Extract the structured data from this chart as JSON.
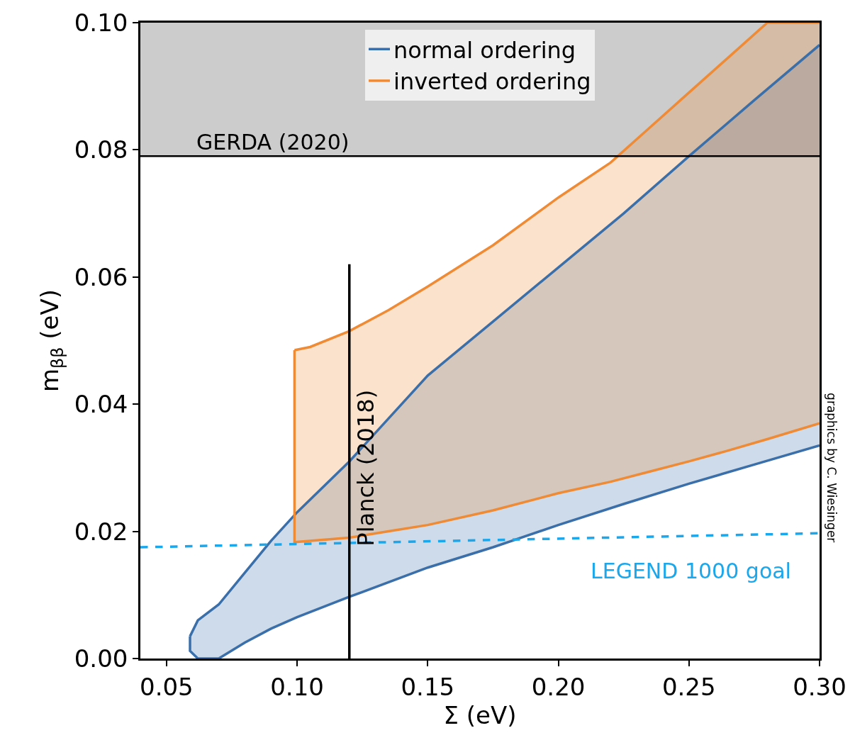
{
  "chart_data": {
    "type": "line",
    "xlabel": "Σ (eV)",
    "ylabel": "m$_{ββ}$ (eV)",
    "xlim": [
      0.04,
      0.3
    ],
    "xticks": [
      {
        "value": 0.05,
        "label": "0.05"
      },
      {
        "value": 0.1,
        "label": "0.10"
      },
      {
        "value": 0.15,
        "label": "0.15"
      },
      {
        "value": 0.2,
        "label": "0.20"
      },
      {
        "value": 0.25,
        "label": "0.25"
      },
      {
        "value": 0.3,
        "label": "0.30"
      }
    ],
    "ylim": [
      0,
      0.1
    ],
    "yticks": [
      {
        "value": 0,
        "label": "0.00"
      },
      {
        "value": 0.02,
        "label": "0.02"
      },
      {
        "value": 0.04,
        "label": "0.04"
      },
      {
        "value": 0.06,
        "label": "0.06"
      },
      {
        "value": 0.08,
        "label": "0.08"
      },
      {
        "value": 0.1,
        "label": "0.10"
      }
    ],
    "grid": false,
    "legend": "top",
    "series": [
      {
        "name": "normal ordering",
        "color": "#3a6faa",
        "x": [
          0.059,
          0.062,
          0.07,
          0.08,
          0.09,
          0.1,
          0.12,
          0.15,
          0.175,
          0.2,
          0.225,
          0.25,
          0.275,
          0.3
        ],
        "values": [
          0.0035,
          0.006,
          0.0085,
          0.0135,
          0.0185,
          0.023,
          0.031,
          0.0445,
          0.053,
          0.0615,
          0.07,
          0.079,
          0.0878,
          0.0965
        ],
        "lower": [
          0.0012,
          0.0,
          0.0,
          0.0025,
          0.0047,
          0.0065,
          0.0097,
          0.0143,
          0.0175,
          0.021,
          0.0243,
          0.0275,
          0.0305,
          0.0335
        ],
        "upper": [
          0.0035,
          0.006,
          0.0085,
          0.0135,
          0.0185,
          0.023,
          0.031,
          0.0445,
          0.053,
          0.0615,
          0.07,
          0.079,
          0.0878,
          0.0965
        ]
      },
      {
        "color": "#3a6faa",
        "x": [
          0.059,
          0.059,
          0.062,
          0.07,
          0.08,
          0.09,
          0.1,
          0.12,
          0.15,
          0.175,
          0.2,
          0.225,
          0.25,
          0.275,
          0.3
        ],
        "values": [
          0.0035,
          0.0012,
          0.0,
          0.0,
          0.0025,
          0.0047,
          0.0065,
          0.0097,
          0.0143,
          0.0175,
          0.021,
          0.0243,
          0.0275,
          0.0305,
          0.0335
        ]
      },
      {
        "name": "inverted ordering",
        "color": "#ef8a35",
        "x": [
          0.099,
          0.105,
          0.12,
          0.135,
          0.15,
          0.175,
          0.2,
          0.22,
          0.235,
          0.25,
          0.265,
          0.28,
          0.3
        ],
        "values": [
          0.0485,
          0.049,
          0.0515,
          0.0548,
          0.0585,
          0.065,
          0.0725,
          0.078,
          0.0835,
          0.089,
          0.0945,
          0.1,
          0.1
        ],
        "lower": [
          0.0183,
          0.0185,
          0.019,
          0.02,
          0.021,
          0.0233,
          0.026,
          0.0278,
          0.0294,
          0.031,
          0.0327,
          0.0345,
          0.037
        ],
        "upper": [
          0.0485,
          0.049,
          0.0515,
          0.0548,
          0.0585,
          0.065,
          0.0725,
          0.078,
          0.0835,
          0.089,
          0.0945,
          0.1,
          0.1
        ]
      },
      {
        "color": "#ef8a35",
        "x": [
          0.099,
          0.099,
          0.105,
          0.12,
          0.135,
          0.15,
          0.175,
          0.2,
          0.22,
          0.235,
          0.25,
          0.265,
          0.28,
          0.3
        ],
        "values": [
          0.0485,
          0.0183,
          0.0185,
          0.019,
          0.02,
          0.021,
          0.0233,
          0.026,
          0.0278,
          0.0294,
          0.031,
          0.0327,
          0.0345,
          0.037
        ]
      },
      {
        "color": "#1aa7ec",
        "line_style": "dashed",
        "x": [
          0.04,
          0.3
        ],
        "values": [
          0.0175,
          0.0197
        ]
      },
      {
        "color": "#000000",
        "x": [
          0.12,
          0.12
        ],
        "values": [
          0.0,
          0.062
        ]
      }
    ],
    "bands": [
      {
        "axis": "y",
        "from": 0.079,
        "to": 0.1,
        "color": "#9a9a9a"
      }
    ],
    "ref_lines": [
      {
        "axis": "y",
        "value": 0.079,
        "label": "GERDA (2020)",
        "color": "#000000"
      }
    ],
    "annotations": [
      {
        "text": "Planck (2018)",
        "x": 0.12,
        "y": 0.03
      },
      "LEGEND 1000 goal",
      "graphics by C. Wiesinger"
    ]
  }
}
